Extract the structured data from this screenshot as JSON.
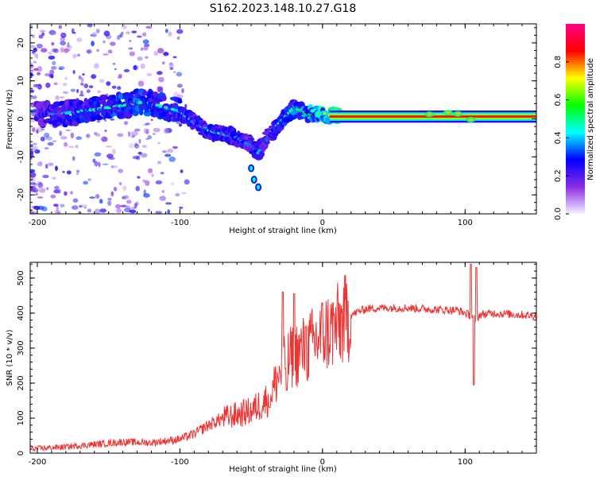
{
  "title": "S162.2023.148.10.27.G18",
  "chart_data": [
    {
      "type": "heatmap",
      "xlabel": "Height of straight line (km)",
      "ylabel": "Frequency (Hz)",
      "xlim": [
        -205,
        150
      ],
      "ylim": [
        -25,
        25
      ],
      "xticks": [
        -200,
        -100,
        0,
        100
      ],
      "yticks": [
        -20,
        -10,
        0,
        10,
        20
      ],
      "colorbar": {
        "label": "Normalized spectral amplitude",
        "range": [
          0,
          1
        ],
        "ticks": [
          "0.0",
          "0.2",
          "0.4",
          "0.6",
          "0.8"
        ],
        "colors": [
          "#f4f0ff",
          "#8a2be2",
          "#0000ff",
          "#00ffff",
          "#00ff00",
          "#ffff00",
          "#ff0000",
          "#ff0088"
        ]
      },
      "ridge": {
        "x": [
          -200,
          -180,
          -160,
          -140,
          -125,
          -110,
          -100,
          -90,
          -80,
          -70,
          -60,
          -50,
          -45,
          -40,
          -35,
          -30,
          -20,
          -10,
          0,
          10,
          50,
          80,
          100,
          110,
          150
        ],
        "y": [
          1,
          1.5,
          2.5,
          3.5,
          4.5,
          3,
          2,
          -1,
          -3,
          -4,
          -5,
          -7,
          -9,
          -6,
          -3,
          -1,
          3,
          1,
          1.5,
          0.6,
          0.6,
          1,
          0.4,
          0.6,
          0.6
        ],
        "amplitude": [
          0.35,
          0.4,
          0.45,
          0.5,
          0.5,
          0.45,
          0.45,
          0.4,
          0.45,
          0.4,
          0.4,
          0.35,
          0.4,
          0.35,
          0.4,
          0.45,
          0.5,
          0.55,
          0.65,
          0.8,
          0.85,
          0.85,
          0.7,
          0.85,
          0.9
        ]
      },
      "branch": {
        "x": [
          -50,
          -48,
          -45
        ],
        "y": [
          -13,
          -16,
          -18
        ]
      }
    },
    {
      "type": "line",
      "xlabel": "Height of straight line (km)",
      "ylabel": "SNR (10 * v/v)",
      "xlim": [
        -205,
        150
      ],
      "ylim": [
        0,
        545
      ],
      "xticks": [
        -200,
        -100,
        0,
        100
      ],
      "yticks": [
        0,
        100,
        200,
        300,
        400,
        500
      ],
      "color": "#ee3333",
      "series": {
        "x": [
          -205,
          -180,
          -160,
          -140,
          -120,
          -100,
          -90,
          -80,
          -70,
          -60,
          -50,
          -40,
          -35,
          -30,
          -25,
          -20,
          -15,
          -10,
          -5,
          0,
          10,
          20,
          30,
          40,
          60,
          80,
          95,
          100,
          105,
          108,
          110,
          120,
          140,
          150
        ],
        "y": [
          12,
          18,
          25,
          32,
          30,
          40,
          55,
          80,
          100,
          110,
          120,
          150,
          180,
          230,
          260,
          280,
          290,
          300,
          320,
          340,
          360,
          395,
          412,
          415,
          415,
          410,
          408,
          400,
          390,
          380,
          395,
          400,
          395,
          392
        ],
        "spikes": [
          {
            "x": -37,
            "y": 130
          },
          {
            "x": -28,
            "y": 460
          },
          {
            "x": -25,
            "y": 180
          },
          {
            "x": -20,
            "y": 455
          },
          {
            "x": -12,
            "y": 360
          },
          {
            "x": 104,
            "y": 540
          },
          {
            "x": 106,
            "y": 195
          },
          {
            "x": 108,
            "y": 530
          }
        ]
      }
    }
  ]
}
